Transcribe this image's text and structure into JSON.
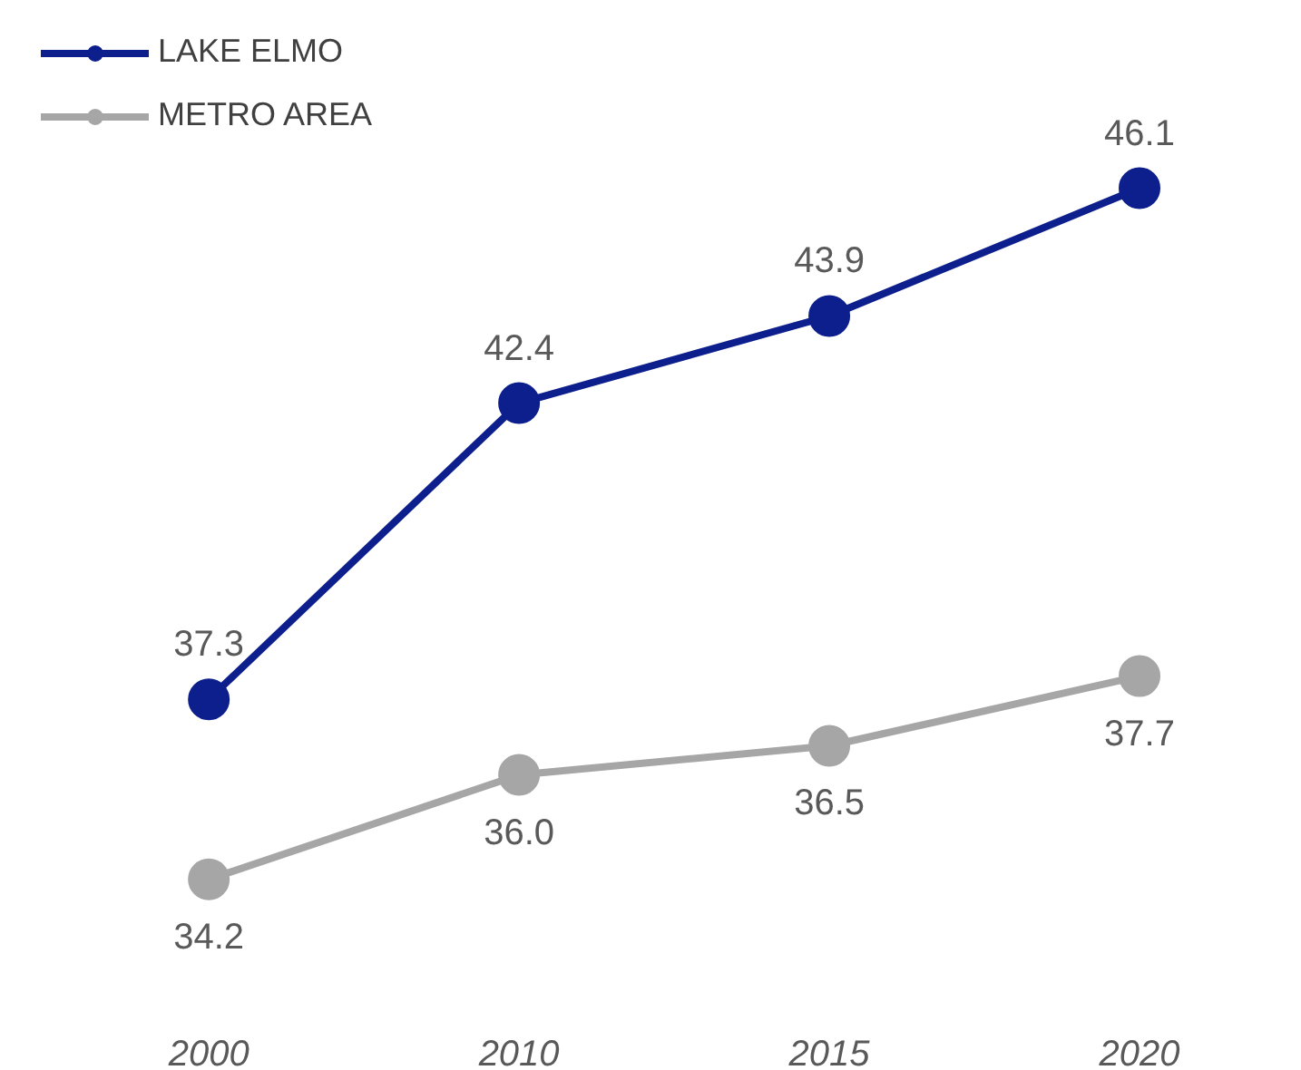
{
  "chart_data": {
    "type": "line",
    "categories": [
      "2000",
      "2010",
      "2015",
      "2020"
    ],
    "series": [
      {
        "name": "LAKE ELMO",
        "color": "#0d1f8c",
        "values": [
          37.3,
          42.4,
          43.9,
          46.1
        ],
        "value_labels": [
          "37.3",
          "42.4",
          "43.9",
          "46.1"
        ]
      },
      {
        "name": "METRO AREA",
        "color": "#a6a6a6",
        "values": [
          34.2,
          36.0,
          36.5,
          37.7
        ],
        "value_labels": [
          "34.2",
          "36.0",
          "36.5",
          "37.7"
        ]
      }
    ],
    "tick_labels": "x",
    "legend": "top left",
    "marker": "circle"
  }
}
